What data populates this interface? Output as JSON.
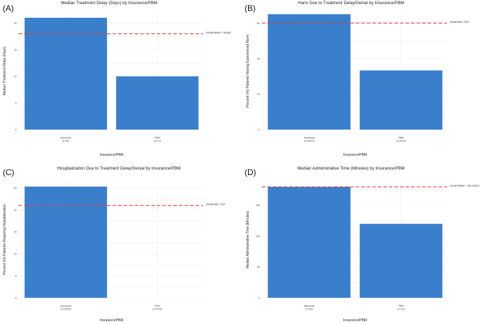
{
  "chart_data": [
    {
      "type": "bar",
      "panel_label": "(A)",
      "title": "Median Treatment Delay (Days) by Insurance/PBM",
      "xlabel": "Insurance/PBM",
      "ylabel": "Median Treatment Delay (Days)",
      "categories": [
        "Insurance",
        "PBM"
      ],
      "category_counts": [
        "(n=62)",
        "(n=13)"
      ],
      "values": [
        21,
        10
      ],
      "ylim": [
        0,
        22
      ],
      "yticks": [
        0,
        5,
        10,
        15,
        20
      ],
      "reference": {
        "value": 18,
        "label": "Overall Median = 18 days"
      },
      "color": "#3a7fcc",
      "ref_color": "#dd3a3a"
    },
    {
      "type": "bar",
      "panel_label": "(B)",
      "title": "Harm Due to Treatment Delay/Denial by Insurance/PBM",
      "xlabel": "Insurance/PBM",
      "ylabel": "Percent (%) Patients Having Experienced Harm",
      "categories": [
        "Insurance",
        "PBM"
      ],
      "category_counts": [
        "(n=59/91)",
        "(n=6/18)"
      ],
      "values": [
        65,
        33.3
      ],
      "ylim": [
        0,
        66
      ],
      "yticks": [
        0,
        20,
        40,
        60
      ],
      "reference": {
        "value": 60,
        "label": "Overall Rate = 60%"
      },
      "color": "#3a7fcc",
      "ref_color": "#dd3a3a"
    },
    {
      "type": "bar",
      "panel_label": "(C)",
      "title": "Hospitalization Due to Treatment Delay/Denial by Insurance/PBM",
      "xlabel": "Insurance/PBM",
      "ylabel": "Percent (%) Patients Requiring Hospitalization",
      "categories": [
        "Insurance",
        "PBM"
      ],
      "category_counts": [
        "(n=23/91)",
        "(n=0/18)"
      ],
      "values": [
        25.3,
        0
      ],
      "ylim": [
        0,
        26.5
      ],
      "yticks": [
        0,
        5,
        10,
        15,
        20,
        25
      ],
      "reference": {
        "value": 21,
        "label": "Overall Rate = 21%"
      },
      "color": "#3a7fcc",
      "ref_color": "#dd3a3a"
    },
    {
      "type": "bar",
      "panel_label": "(D)",
      "title": "Median Administrative Time (Minutes) by Insurance/PBM",
      "xlabel": "Insurance/PBM",
      "ylabel": "Median Administrative Time (Minutes)",
      "categories": [
        "Insurance",
        "PBM"
      ],
      "category_counts": [
        "(n=63)",
        "(n=13)"
      ],
      "values": [
        180,
        120
      ],
      "ylim": [
        0,
        189
      ],
      "yticks": [
        0,
        50,
        100,
        150
      ],
      "reference": {
        "value": 180,
        "label": "Overall Median = 180 minutes"
      },
      "color": "#3a7fcc",
      "ref_color": "#dd3a3a"
    }
  ]
}
